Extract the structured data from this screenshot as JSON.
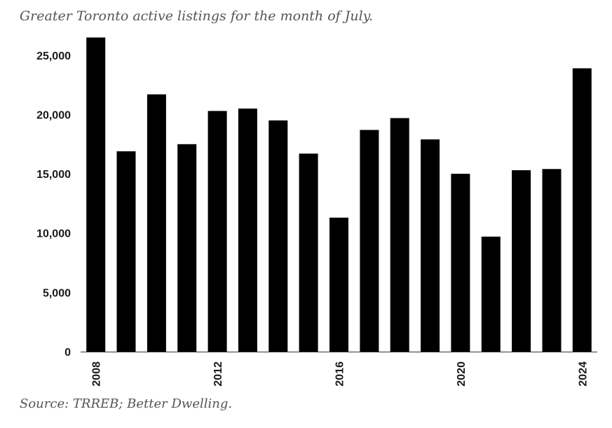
{
  "chart_data": {
    "type": "bar",
    "title": "Greater Toronto active listings for the month of July.",
    "source": "Source: TRREB; Better Dwelling.",
    "categories": [
      "2008",
      "2009",
      "2010",
      "2011",
      "2012",
      "2013",
      "2014",
      "2015",
      "2016",
      "2017",
      "2018",
      "2019",
      "2020",
      "2021",
      "2022",
      "2023",
      "2024"
    ],
    "values": [
      26500,
      16900,
      21700,
      17500,
      20300,
      20500,
      19500,
      16700,
      11300,
      18700,
      19700,
      17900,
      15000,
      9700,
      15300,
      15400,
      23900
    ],
    "x_tick_labels": [
      "2008",
      "2012",
      "2016",
      "2020",
      "2024"
    ],
    "y_tick_labels": [
      "0",
      "5,000",
      "10,000",
      "15,000",
      "20,000",
      "25,000"
    ],
    "y_ticks": [
      0,
      5000,
      10000,
      15000,
      20000,
      25000
    ],
    "ylim": [
      0,
      27000
    ],
    "xlabel": "",
    "ylabel": "",
    "bar_color": "#000000",
    "grid": false
  }
}
